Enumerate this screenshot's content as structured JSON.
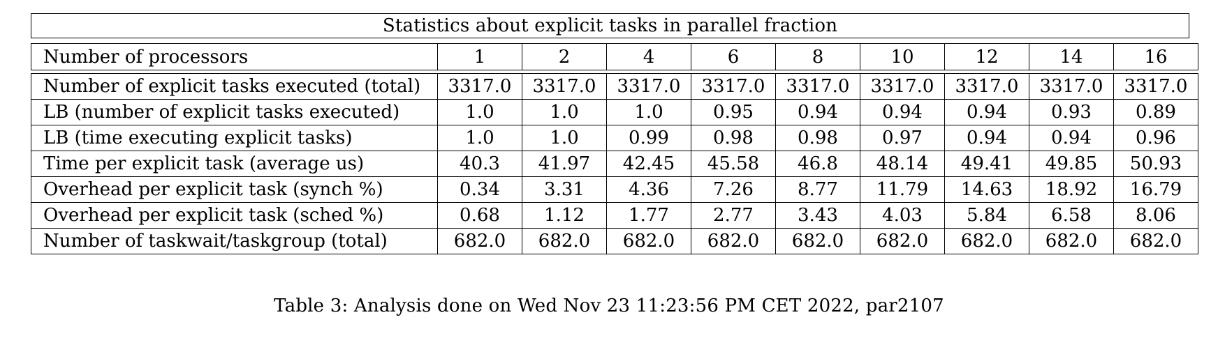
{
  "table": {
    "title": "Statistics about explicit tasks in parallel fraction",
    "header": {
      "label": "Number of processors",
      "values": [
        "1",
        "2",
        "4",
        "6",
        "8",
        "10",
        "12",
        "14",
        "16"
      ]
    },
    "rows": [
      {
        "label": "Number of explicit tasks executed (total)",
        "values": [
          "3317.0",
          "3317.0",
          "3317.0",
          "3317.0",
          "3317.0",
          "3317.0",
          "3317.0",
          "3317.0",
          "3317.0"
        ]
      },
      {
        "label": "LB (number of explicit tasks executed)",
        "values": [
          "1.0",
          "1.0",
          "1.0",
          "0.95",
          "0.94",
          "0.94",
          "0.94",
          "0.93",
          "0.89"
        ]
      },
      {
        "label": "LB (time executing explicit tasks)",
        "values": [
          "1.0",
          "1.0",
          "0.99",
          "0.98",
          "0.98",
          "0.97",
          "0.94",
          "0.94",
          "0.96"
        ]
      },
      {
        "label": "Time per explicit task (average us)",
        "values": [
          "40.3",
          "41.97",
          "42.45",
          "45.58",
          "46.8",
          "48.14",
          "49.41",
          "49.85",
          "50.93"
        ]
      },
      {
        "label": "Overhead per explicit task (synch %)",
        "values": [
          "0.34",
          "3.31",
          "4.36",
          "7.26",
          "8.77",
          "11.79",
          "14.63",
          "18.92",
          "16.79"
        ]
      },
      {
        "label": "Overhead per explicit task (sched %)",
        "values": [
          "0.68",
          "1.12",
          "1.77",
          "2.77",
          "3.43",
          "4.03",
          "5.84",
          "6.58",
          "8.06"
        ]
      },
      {
        "label": "Number of taskwait/taskgroup (total)",
        "values": [
          "682.0",
          "682.0",
          "682.0",
          "682.0",
          "682.0",
          "682.0",
          "682.0",
          "682.0",
          "682.0"
        ]
      }
    ]
  },
  "caption": "Table 3: Analysis done on Wed Nov 23 11:23:56 PM CET 2022, par2107"
}
